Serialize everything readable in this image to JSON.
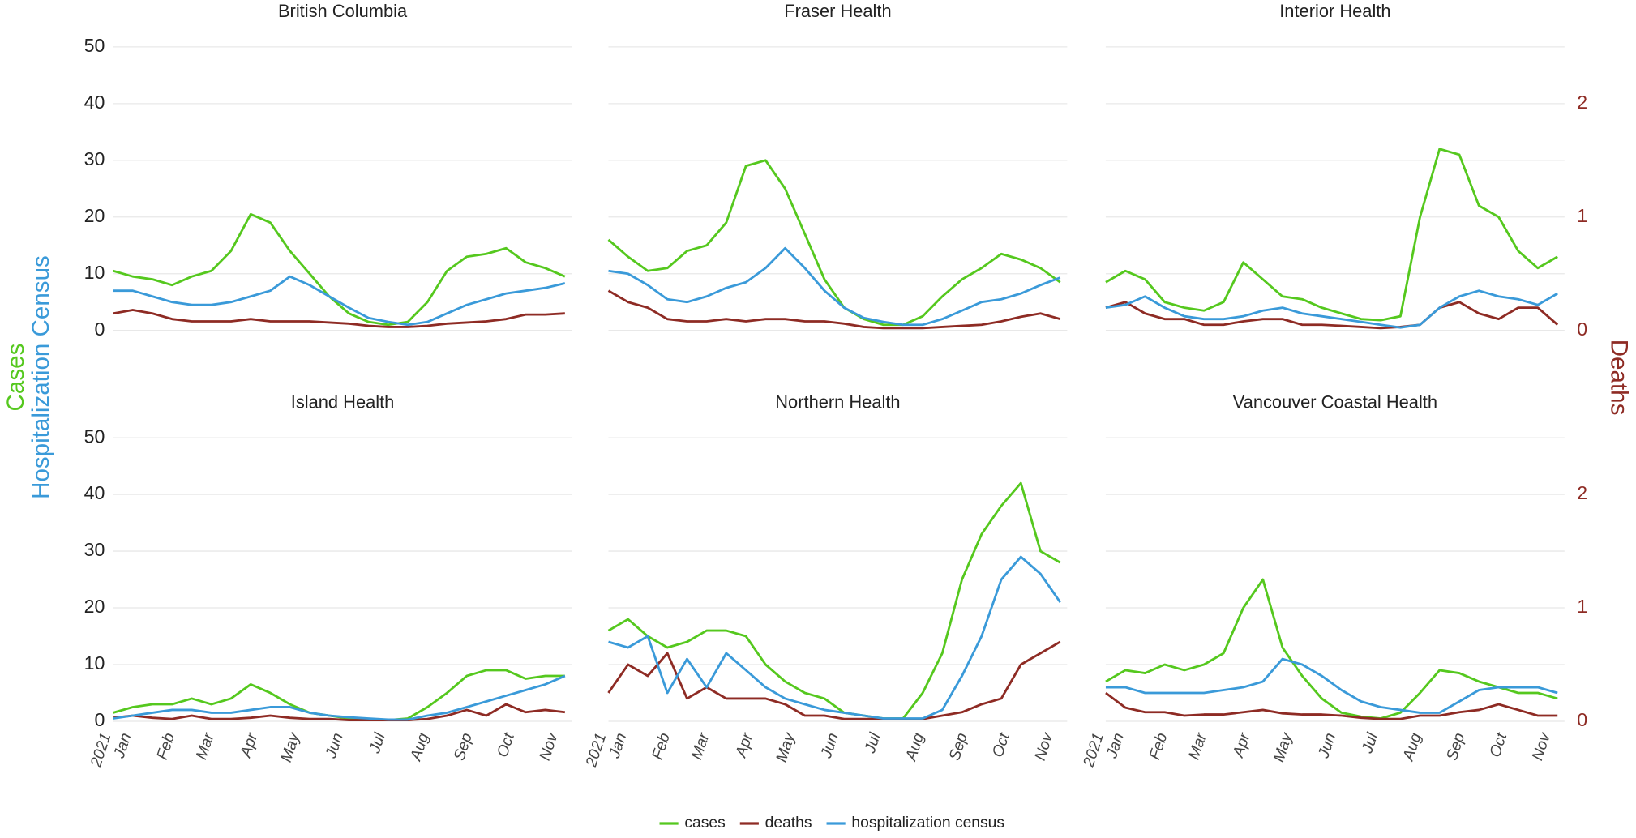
{
  "chart_data": {
    "type": "line",
    "x": [
      -7,
      7,
      21,
      35,
      49,
      63,
      77,
      91,
      105,
      119,
      133,
      147,
      161,
      175,
      189,
      203,
      217,
      231,
      245,
      259,
      273,
      287,
      301,
      315
    ],
    "xlim": [
      -7,
      320
    ],
    "xticks": [
      {
        "value": 0,
        "label": "Jan"
      },
      {
        "value": 31,
        "label": "Feb"
      },
      {
        "value": 59,
        "label": "Mar"
      },
      {
        "value": 90,
        "label": "Apr"
      },
      {
        "value": 120,
        "label": "May"
      },
      {
        "value": 151,
        "label": "Jun"
      },
      {
        "value": 181,
        "label": "Jul"
      },
      {
        "value": 212,
        "label": "Aug"
      },
      {
        "value": 243,
        "label": "Sep"
      },
      {
        "value": 273,
        "label": "Oct"
      },
      {
        "value": 304,
        "label": "Nov"
      }
    ],
    "year_label": "2021",
    "ylim": [
      0,
      50
    ],
    "yticks": [
      0,
      10,
      20,
      30,
      40,
      50
    ],
    "y2lim": [
      0,
      2.5
    ],
    "y2ticks": [
      0,
      1,
      2
    ],
    "ylabels": [
      "Cases",
      "Hospitalization Census"
    ],
    "y2label": "Deaths",
    "grid": true,
    "legend_position": "bottom",
    "series": [
      {
        "name": "cases",
        "color": "#55c81e"
      },
      {
        "name": "deaths",
        "color": "#8e2b24",
        "axis": "y2"
      },
      {
        "name": "hospitalization census",
        "color": "#3a9ad9"
      }
    ],
    "panels": [
      {
        "title": "British Columbia",
        "series": [
          {
            "values": [
              10.5,
              9.5,
              9,
              8,
              9.5,
              10.5,
              14,
              20.5,
              19,
              14,
              10,
              6,
              3,
              1.5,
              1,
              1.5,
              5,
              10.5,
              13,
              13.5,
              14.5,
              12,
              11,
              9.5
            ]
          },
          {
            "values": [
              0.15,
              0.18,
              0.15,
              0.1,
              0.08,
              0.08,
              0.08,
              0.1,
              0.08,
              0.08,
              0.08,
              0.07,
              0.06,
              0.04,
              0.03,
              0.03,
              0.04,
              0.06,
              0.07,
              0.08,
              0.1,
              0.14,
              0.14,
              0.15
            ]
          },
          {
            "values": [
              7,
              7,
              6,
              5,
              4.5,
              4.5,
              5,
              6,
              7,
              9.5,
              8,
              6,
              4,
              2.2,
              1.5,
              1,
              1.5,
              3,
              4.5,
              5.5,
              6.5,
              7,
              7.5,
              8.3
            ]
          }
        ]
      },
      {
        "title": "Fraser Health",
        "series": [
          {
            "values": [
              16,
              13,
              10.5,
              11,
              14,
              15,
              19,
              29,
              30,
              25,
              17,
              9,
              4,
              2,
              1,
              1,
              2.5,
              6,
              9,
              11,
              13.5,
              12.5,
              11,
              8.5
            ]
          },
          {
            "values": [
              0.35,
              0.25,
              0.2,
              0.1,
              0.08,
              0.08,
              0.1,
              0.08,
              0.1,
              0.1,
              0.08,
              0.08,
              0.06,
              0.03,
              0.02,
              0.02,
              0.02,
              0.03,
              0.04,
              0.05,
              0.08,
              0.12,
              0.15,
              0.1
            ]
          },
          {
            "values": [
              10.5,
              10,
              8,
              5.5,
              5,
              6,
              7.5,
              8.5,
              11,
              14.5,
              11,
              7,
              4,
              2.2,
              1.5,
              1,
              1,
              2,
              3.5,
              5,
              5.5,
              6.5,
              8,
              9.3
            ]
          }
        ]
      },
      {
        "title": "Interior Health",
        "series": [
          {
            "values": [
              8.5,
              10.5,
              9,
              5,
              4,
              3.5,
              5,
              12,
              9,
              6,
              5.5,
              4,
              3,
              2,
              1.8,
              2.5,
              20,
              32,
              31,
              22,
              20,
              14,
              11,
              13
            ]
          },
          {
            "values": [
              0.2,
              0.25,
              0.15,
              0.1,
              0.1,
              0.05,
              0.05,
              0.08,
              0.1,
              0.1,
              0.05,
              0.05,
              0.04,
              0.03,
              0.02,
              0.03,
              0.05,
              0.2,
              0.25,
              0.15,
              0.1,
              0.2,
              0.2,
              0.05
            ]
          },
          {
            "values": [
              4,
              4.5,
              6,
              4,
              2.5,
              2,
              2,
              2.5,
              3.5,
              4,
              3,
              2.5,
              2,
              1.5,
              1,
              0.5,
              1,
              4,
              6,
              7,
              6,
              5.5,
              4.5,
              6.5
            ]
          }
        ]
      },
      {
        "title": "Island Health",
        "series": [
          {
            "values": [
              1.5,
              2.5,
              3,
              3,
              4,
              3,
              4,
              6.5,
              5,
              3,
              1.5,
              1,
              0.5,
              0.3,
              0.2,
              0.5,
              2.5,
              5,
              8,
              9,
              9,
              7.5,
              8,
              8
            ]
          },
          {
            "values": [
              0.03,
              0.05,
              0.03,
              0.02,
              0.05,
              0.02,
              0.02,
              0.03,
              0.05,
              0.03,
              0.02,
              0.02,
              0.01,
              0.01,
              0.01,
              0.01,
              0.02,
              0.05,
              0.1,
              0.05,
              0.15,
              0.08,
              0.1,
              0.08
            ]
          },
          {
            "values": [
              0.5,
              1,
              1.5,
              2,
              2,
              1.5,
              1.5,
              2,
              2.5,
              2.5,
              1.5,
              1,
              0.7,
              0.5,
              0.3,
              0.3,
              1,
              1.5,
              2.5,
              3.5,
              4.5,
              5.5,
              6.5,
              8
            ]
          }
        ]
      },
      {
        "title": "Northern Health",
        "series": [
          {
            "values": [
              16,
              18,
              15,
              13,
              14,
              16,
              16,
              15,
              10,
              7,
              5,
              4,
              1.5,
              1,
              0.5,
              0.5,
              5,
              12,
              25,
              33,
              38,
              42,
              30,
              28
            ]
          },
          {
            "values": [
              0.25,
              0.5,
              0.4,
              0.6,
              0.2,
              0.3,
              0.2,
              0.2,
              0.2,
              0.15,
              0.05,
              0.05,
              0.02,
              0.02,
              0.02,
              0.02,
              0.02,
              0.05,
              0.08,
              0.15,
              0.2,
              0.5,
              0.6,
              0.7
            ]
          },
          {
            "values": [
              14,
              13,
              15,
              5,
              11,
              6,
              12,
              9,
              6,
              4,
              3,
              2,
              1.5,
              1,
              0.5,
              0.5,
              0.5,
              2,
              8,
              15,
              25,
              29,
              26,
              21
            ]
          }
        ]
      },
      {
        "title": "Vancouver Coastal Health",
        "series": [
          {
            "values": [
              7,
              9,
              8.5,
              10,
              9,
              10,
              12,
              20,
              25,
              13,
              8,
              4,
              1.5,
              0.8,
              0.5,
              1.5,
              5,
              9,
              8.5,
              7,
              6,
              5,
              5,
              4
            ]
          },
          {
            "values": [
              0.25,
              0.12,
              0.08,
              0.08,
              0.05,
              0.06,
              0.06,
              0.08,
              0.1,
              0.07,
              0.06,
              0.06,
              0.05,
              0.03,
              0.02,
              0.02,
              0.05,
              0.05,
              0.08,
              0.1,
              0.15,
              0.1,
              0.05,
              0.05
            ]
          },
          {
            "values": [
              6,
              6,
              5,
              5,
              5,
              5,
              5.5,
              6,
              7,
              11,
              10,
              8,
              5.5,
              3.5,
              2.5,
              2,
              1.5,
              1.5,
              3.5,
              5.5,
              6,
              6,
              6,
              5
            ]
          }
        ]
      }
    ]
  }
}
